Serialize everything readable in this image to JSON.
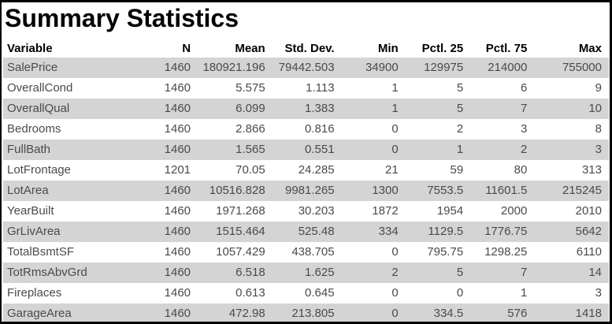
{
  "title": "Summary Statistics",
  "colors": {
    "frame_border": "#000000",
    "stripe_background": "#d4d4d4",
    "header_text": "#000000",
    "body_text": "#4a4a4a"
  },
  "chart_data": {
    "type": "table",
    "title": "Summary Statistics",
    "columns": [
      "Variable",
      "N",
      "Mean",
      "Std. Dev.",
      "Min",
      "Pctl. 25",
      "Pctl. 75",
      "Max"
    ],
    "rows": [
      [
        "SalePrice",
        1460,
        180921.196,
        79442.503,
        34900,
        129975,
        214000,
        755000
      ],
      [
        "OverallCond",
        1460,
        5.575,
        1.113,
        1,
        5,
        6,
        9
      ],
      [
        "OverallQual",
        1460,
        6.099,
        1.383,
        1,
        5,
        7,
        10
      ],
      [
        "Bedrooms",
        1460,
        2.866,
        0.816,
        0,
        2,
        3,
        8
      ],
      [
        "FullBath",
        1460,
        1.565,
        0.551,
        0,
        1,
        2,
        3
      ],
      [
        "LotFrontage",
        1201,
        70.05,
        24.285,
        21,
        59,
        80,
        313
      ],
      [
        "LotArea",
        1460,
        10516.828,
        9981.265,
        1300,
        7553.5,
        11601.5,
        215245
      ],
      [
        "YearBuilt",
        1460,
        1971.268,
        30.203,
        1872,
        1954,
        2000,
        2010
      ],
      [
        "GrLivArea",
        1460,
        1515.464,
        525.48,
        334,
        1129.5,
        1776.75,
        5642
      ],
      [
        "TotalBsmtSF",
        1460,
        1057.429,
        438.705,
        0,
        795.75,
        1298.25,
        6110
      ],
      [
        "TotRmsAbvGrd",
        1460,
        6.518,
        1.625,
        2,
        5,
        7,
        14
      ],
      [
        "Fireplaces",
        1460,
        0.613,
        0.645,
        0,
        0,
        1,
        3
      ],
      [
        "GarageArea",
        1460,
        472.98,
        213.805,
        0,
        334.5,
        576,
        1418
      ]
    ],
    "layout": {
      "stripe_rows": "odd",
      "numeric_alignment": "right",
      "first_column_alignment": "left"
    }
  }
}
